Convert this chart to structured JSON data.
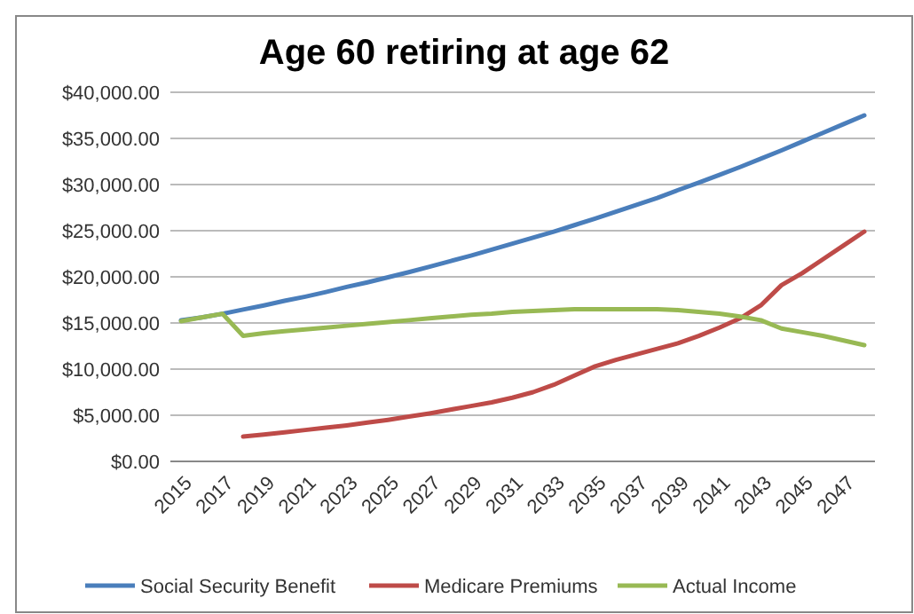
{
  "chart_data": {
    "type": "line",
    "title": "Age 60 retiring at age 62",
    "categories": [
      "2015",
      null,
      "2017",
      null,
      "2019",
      null,
      "2021",
      null,
      "2023",
      null,
      "2025",
      null,
      "2027",
      null,
      "2029",
      null,
      "2031",
      null,
      "2033",
      null,
      "2035",
      null,
      "2037",
      null,
      "2039",
      null,
      "2041",
      null,
      "2043",
      null,
      "2045",
      null,
      "2047",
      null
    ],
    "series": [
      {
        "name": "Social Security Benefit",
        "color": "#4a7ebb",
        "values": [
          15300,
          15600,
          16000,
          16450,
          16900,
          17400,
          17850,
          18350,
          18900,
          19400,
          19950,
          20500,
          21100,
          21700,
          22300,
          22950,
          23600,
          24250,
          24900,
          25600,
          26300,
          27050,
          27800,
          28550,
          29400,
          30200,
          31050,
          31900,
          32800,
          33700,
          34650,
          35600,
          36550,
          37500
        ]
      },
      {
        "name": "Medicare Premiums",
        "color": "#be4b48",
        "values": [
          null,
          null,
          null,
          2700,
          2900,
          3150,
          3400,
          3650,
          3900,
          4200,
          4500,
          4850,
          5200,
          5600,
          6000,
          6400,
          6900,
          7500,
          8300,
          9300,
          10300,
          11000,
          11600,
          12200,
          12800,
          13600,
          14500,
          15500,
          16900,
          19100,
          20400,
          21900,
          23400,
          24900
        ]
      },
      {
        "name": "Actual Income",
        "color": "#98b954",
        "values": [
          15200,
          15600,
          16000,
          13600,
          13900,
          14100,
          14300,
          14500,
          14700,
          14900,
          15100,
          15300,
          15500,
          15700,
          15900,
          16000,
          16200,
          16300,
          16400,
          16500,
          16500,
          16500,
          16500,
          16500,
          16400,
          16200,
          16000,
          15700,
          15300,
          14400,
          14000,
          13600,
          13100,
          12600
        ]
      }
    ],
    "ylim": [
      0,
      40000
    ],
    "yticks": [
      {
        "value": 0,
        "label": "$0.00"
      },
      {
        "value": 5000,
        "label": "$5,000.00"
      },
      {
        "value": 10000,
        "label": "$10,000.00"
      },
      {
        "value": 15000,
        "label": "$15,000.00"
      },
      {
        "value": 20000,
        "label": "$20,000.00"
      },
      {
        "value": 25000,
        "label": "$25,000.00"
      },
      {
        "value": 30000,
        "label": "$30,000.00"
      },
      {
        "value": 35000,
        "label": "$35,000.00"
      },
      {
        "value": 40000,
        "label": "$40,000.00"
      }
    ],
    "grid": "y",
    "legend": "bottom",
    "marker": "none",
    "line_style": "solid"
  }
}
